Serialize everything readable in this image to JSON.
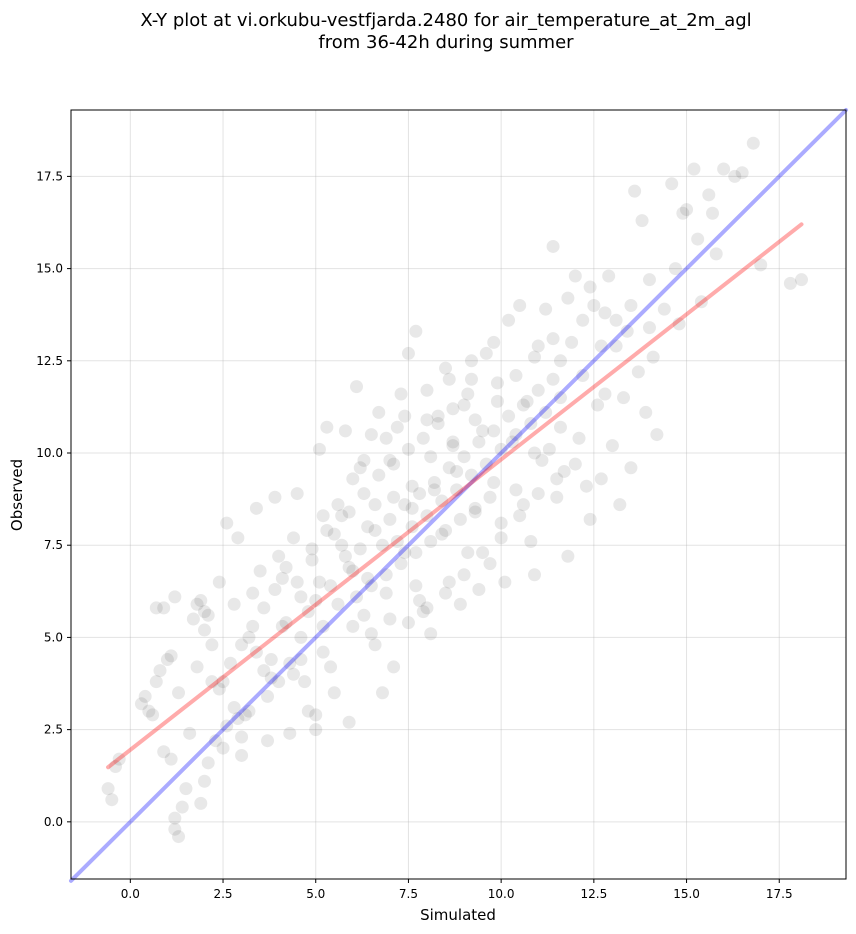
{
  "chart_data": {
    "type": "scatter",
    "title_line1": "X-Y plot at vi.orkubu-vestfjarda.2480 for air_temperature_at_2m_agl",
    "title_line2": "from 36-42h during summer",
    "xlabel": "Simulated",
    "ylabel": "Observed",
    "xlim": [
      -1.6,
      19.3
    ],
    "ylim": [
      -1.55,
      19.3
    ],
    "xticks": [
      0.0,
      2.5,
      5.0,
      7.5,
      10.0,
      12.5,
      15.0,
      17.5
    ],
    "yticks": [
      0.0,
      2.5,
      5.0,
      7.5,
      10.0,
      12.5,
      15.0,
      17.5
    ],
    "xtick_labels": [
      "0.0",
      "2.5",
      "5.0",
      "7.5",
      "10.0",
      "12.5",
      "15.0",
      "17.5"
    ],
    "ytick_labels": [
      "0.0",
      "2.5",
      "5.0",
      "7.5",
      "10.0",
      "12.5",
      "15.0",
      "17.5"
    ],
    "grid": true,
    "point_color": "#000000",
    "point_alpha": 0.09,
    "lines": [
      {
        "role": "one-to-one",
        "color": "#0000ff",
        "alpha": 0.33,
        "x": [
          -1.6,
          19.3
        ],
        "y": [
          -1.6,
          19.3
        ]
      },
      {
        "role": "regression",
        "color": "#ff0000",
        "alpha": 0.33,
        "x": [
          -0.6,
          18.1
        ],
        "y": [
          1.48,
          16.2
        ]
      }
    ],
    "points": [
      [
        -0.6,
        0.9
      ],
      [
        -0.5,
        0.6
      ],
      [
        -0.3,
        1.7
      ],
      [
        -0.4,
        1.5
      ],
      [
        0.3,
        3.2
      ],
      [
        0.4,
        3.4
      ],
      [
        0.5,
        3.0
      ],
      [
        0.6,
        2.9
      ],
      [
        0.7,
        3.8
      ],
      [
        0.8,
        4.1
      ],
      [
        0.7,
        5.8
      ],
      [
        0.9,
        5.8
      ],
      [
        1.0,
        4.4
      ],
      [
        1.1,
        4.5
      ],
      [
        1.2,
        6.1
      ],
      [
        0.9,
        1.9
      ],
      [
        1.1,
        1.7
      ],
      [
        1.2,
        0.1
      ],
      [
        1.2,
        -0.2
      ],
      [
        1.3,
        -0.4
      ],
      [
        1.4,
        0.4
      ],
      [
        1.5,
        0.9
      ],
      [
        1.3,
        3.5
      ],
      [
        1.6,
        2.4
      ],
      [
        1.7,
        5.5
      ],
      [
        1.8,
        5.9
      ],
      [
        1.9,
        6.0
      ],
      [
        2.0,
        5.2
      ],
      [
        2.1,
        5.6
      ],
      [
        2.2,
        4.8
      ],
      [
        1.9,
        0.5
      ],
      [
        2.0,
        1.1
      ],
      [
        2.1,
        1.6
      ],
      [
        2.3,
        2.2
      ],
      [
        2.4,
        3.6
      ],
      [
        2.5,
        3.8
      ],
      [
        2.4,
        6.5
      ],
      [
        2.6,
        8.1
      ],
      [
        2.8,
        5.9
      ],
      [
        2.9,
        7.7
      ],
      [
        2.5,
        2.0
      ],
      [
        2.6,
        2.6
      ],
      [
        2.8,
        3.1
      ],
      [
        3.0,
        2.3
      ],
      [
        3.0,
        1.8
      ],
      [
        3.1,
        2.9
      ],
      [
        3.2,
        5.0
      ],
      [
        3.3,
        6.2
      ],
      [
        3.4,
        8.5
      ],
      [
        3.5,
        6.8
      ],
      [
        3.6,
        4.1
      ],
      [
        3.7,
        2.2
      ],
      [
        3.8,
        3.9
      ],
      [
        3.9,
        8.8
      ],
      [
        4.0,
        7.2
      ],
      [
        4.1,
        6.6
      ],
      [
        4.2,
        5.4
      ],
      [
        4.3,
        4.3
      ],
      [
        4.3,
        2.4
      ],
      [
        4.4,
        7.7
      ],
      [
        4.5,
        8.9
      ],
      [
        4.6,
        5.0
      ],
      [
        4.7,
        3.8
      ],
      [
        4.8,
        3.0
      ],
      [
        4.9,
        7.1
      ],
      [
        5.0,
        2.5
      ],
      [
        5.0,
        2.9
      ],
      [
        5.1,
        6.5
      ],
      [
        5.1,
        10.1
      ],
      [
        5.2,
        8.3
      ],
      [
        5.3,
        10.7
      ],
      [
        5.4,
        4.2
      ],
      [
        5.5,
        3.5
      ],
      [
        5.6,
        8.6
      ],
      [
        5.7,
        7.5
      ],
      [
        5.8,
        10.6
      ],
      [
        5.9,
        6.9
      ],
      [
        5.9,
        2.7
      ],
      [
        6.0,
        9.3
      ],
      [
        6.1,
        11.8
      ],
      [
        6.2,
        9.6
      ],
      [
        6.3,
        5.6
      ],
      [
        6.4,
        8.0
      ],
      [
        6.5,
        10.5
      ],
      [
        6.6,
        4.8
      ],
      [
        6.7,
        11.1
      ],
      [
        6.8,
        3.5
      ],
      [
        6.9,
        6.2
      ],
      [
        7.0,
        9.8
      ],
      [
        7.1,
        4.2
      ],
      [
        7.2,
        10.7
      ],
      [
        7.3,
        11.6
      ],
      [
        7.4,
        7.3
      ],
      [
        7.5,
        12.7
      ],
      [
        7.6,
        8.5
      ],
      [
        7.7,
        13.3
      ],
      [
        7.8,
        6.0
      ],
      [
        7.9,
        5.7
      ],
      [
        8.0,
        10.9
      ],
      [
        8.1,
        5.1
      ],
      [
        8.2,
        9.0
      ],
      [
        8.3,
        11.0
      ],
      [
        8.4,
        7.8
      ],
      [
        8.5,
        12.3
      ],
      [
        8.6,
        6.5
      ],
      [
        8.7,
        10.2
      ],
      [
        8.8,
        9.5
      ],
      [
        8.9,
        5.9
      ],
      [
        9.0,
        11.3
      ],
      [
        9.1,
        7.3
      ],
      [
        9.2,
        12.0
      ],
      [
        9.3,
        8.4
      ],
      [
        9.4,
        6.3
      ],
      [
        9.5,
        10.6
      ],
      [
        9.6,
        12.7
      ],
      [
        9.7,
        7.0
      ],
      [
        9.8,
        9.2
      ],
      [
        9.9,
        11.9
      ],
      [
        10.0,
        8.1
      ],
      [
        10.1,
        6.5
      ],
      [
        10.2,
        13.6
      ],
      [
        10.3,
        10.3
      ],
      [
        10.4,
        9.0
      ],
      [
        10.5,
        14.0
      ],
      [
        10.6,
        8.6
      ],
      [
        10.7,
        11.4
      ],
      [
        10.8,
        7.6
      ],
      [
        10.9,
        6.7
      ],
      [
        11.0,
        12.9
      ],
      [
        11.1,
        9.8
      ],
      [
        11.2,
        13.9
      ],
      [
        11.3,
        10.1
      ],
      [
        11.4,
        15.6
      ],
      [
        11.5,
        8.8
      ],
      [
        11.6,
        12.5
      ],
      [
        11.7,
        9.5
      ],
      [
        11.8,
        7.2
      ],
      [
        11.9,
        13.0
      ],
      [
        12.0,
        14.8
      ],
      [
        12.1,
        10.4
      ],
      [
        12.2,
        12.1
      ],
      [
        12.3,
        9.1
      ],
      [
        12.4,
        8.2
      ],
      [
        12.5,
        14.0
      ],
      [
        12.6,
        11.3
      ],
      [
        12.7,
        9.3
      ],
      [
        12.8,
        13.8
      ],
      [
        12.9,
        14.8
      ],
      [
        13.0,
        10.2
      ],
      [
        13.1,
        12.9
      ],
      [
        13.2,
        8.6
      ],
      [
        13.3,
        11.5
      ],
      [
        13.4,
        13.3
      ],
      [
        13.5,
        9.6
      ],
      [
        13.6,
        17.1
      ],
      [
        13.7,
        12.2
      ],
      [
        13.8,
        16.3
      ],
      [
        13.9,
        11.1
      ],
      [
        14.0,
        14.7
      ],
      [
        14.1,
        12.6
      ],
      [
        14.2,
        10.5
      ],
      [
        14.4,
        13.9
      ],
      [
        14.6,
        17.3
      ],
      [
        14.7,
        15.0
      ],
      [
        14.8,
        13.5
      ],
      [
        15.0,
        16.6
      ],
      [
        15.2,
        17.7
      ],
      [
        15.4,
        14.1
      ],
      [
        15.6,
        17.0
      ],
      [
        15.8,
        15.4
      ],
      [
        16.0,
        17.7
      ],
      [
        16.3,
        17.5
      ],
      [
        16.8,
        18.4
      ],
      [
        17.0,
        15.1
      ],
      [
        17.8,
        14.6
      ],
      [
        18.1,
        14.7
      ],
      [
        15.3,
        15.8
      ],
      [
        14.9,
        16.5
      ],
      [
        16.5,
        17.6
      ],
      [
        15.7,
        16.5
      ],
      [
        3.4,
        4.6
      ],
      [
        3.8,
        4.4
      ],
      [
        4.1,
        5.3
      ],
      [
        4.4,
        4.0
      ],
      [
        4.6,
        6.1
      ],
      [
        4.8,
        5.7
      ],
      [
        5.0,
        6.0
      ],
      [
        5.2,
        5.3
      ],
      [
        5.4,
        6.4
      ],
      [
        5.6,
        5.9
      ],
      [
        5.8,
        7.2
      ],
      [
        6.0,
        6.8
      ],
      [
        6.2,
        7.4
      ],
      [
        6.4,
        6.6
      ],
      [
        6.6,
        7.9
      ],
      [
        6.8,
        7.5
      ],
      [
        7.0,
        8.2
      ],
      [
        7.2,
        7.6
      ],
      [
        7.4,
        8.6
      ],
      [
        7.6,
        8.0
      ],
      [
        7.8,
        8.9
      ],
      [
        8.0,
        8.3
      ],
      [
        8.2,
        9.2
      ],
      [
        8.4,
        8.7
      ],
      [
        8.6,
        9.6
      ],
      [
        8.8,
        9.0
      ],
      [
        9.0,
        9.9
      ],
      [
        9.2,
        9.4
      ],
      [
        9.4,
        10.3
      ],
      [
        9.6,
        9.7
      ],
      [
        9.8,
        10.6
      ],
      [
        10.0,
        10.1
      ],
      [
        10.2,
        11.0
      ],
      [
        10.4,
        10.5
      ],
      [
        10.6,
        11.3
      ],
      [
        10.8,
        10.8
      ],
      [
        11.0,
        11.7
      ],
      [
        11.2,
        11.1
      ],
      [
        11.4,
        12.0
      ],
      [
        11.6,
        11.5
      ],
      [
        5.5,
        7.8
      ],
      [
        5.9,
        8.4
      ],
      [
        6.3,
        8.9
      ],
      [
        6.7,
        9.4
      ],
      [
        7.1,
        9.7
      ],
      [
        7.5,
        10.1
      ],
      [
        7.9,
        10.4
      ],
      [
        8.3,
        10.8
      ],
      [
        8.7,
        11.2
      ],
      [
        9.1,
        11.6
      ],
      [
        6.1,
        6.1
      ],
      [
        6.5,
        6.4
      ],
      [
        6.9,
        6.7
      ],
      [
        7.3,
        7.0
      ],
      [
        7.7,
        7.3
      ],
      [
        8.1,
        7.6
      ],
      [
        8.5,
        7.9
      ],
      [
        8.9,
        8.2
      ],
      [
        9.3,
        8.5
      ],
      [
        9.7,
        8.8
      ],
      [
        4.9,
        7.4
      ],
      [
        5.3,
        7.9
      ],
      [
        5.7,
        8.3
      ],
      [
        6.3,
        9.8
      ],
      [
        6.9,
        10.4
      ],
      [
        7.4,
        11.0
      ],
      [
        8.0,
        11.7
      ],
      [
        8.6,
        12.0
      ],
      [
        9.2,
        12.5
      ],
      [
        9.8,
        13.0
      ],
      [
        7.5,
        5.4
      ],
      [
        8.0,
        5.8
      ],
      [
        8.5,
        6.2
      ],
      [
        9.0,
        6.7
      ],
      [
        9.5,
        7.3
      ],
      [
        10.0,
        7.7
      ],
      [
        10.5,
        8.3
      ],
      [
        11.0,
        8.9
      ],
      [
        11.5,
        9.3
      ],
      [
        12.0,
        9.7
      ],
      [
        3.0,
        4.8
      ],
      [
        3.3,
        5.3
      ],
      [
        3.6,
        5.8
      ],
      [
        3.9,
        6.3
      ],
      [
        4.2,
        6.9
      ],
      [
        4.5,
        6.5
      ],
      [
        2.7,
        4.3
      ],
      [
        2.2,
        3.8
      ],
      [
        1.8,
        4.2
      ],
      [
        2.0,
        5.7
      ],
      [
        6.6,
        8.6
      ],
      [
        7.1,
        8.8
      ],
      [
        7.6,
        9.1
      ],
      [
        8.1,
        9.9
      ],
      [
        8.7,
        10.3
      ],
      [
        9.3,
        10.9
      ],
      [
        9.9,
        11.4
      ],
      [
        10.4,
        12.1
      ],
      [
        10.9,
        12.6
      ],
      [
        11.4,
        13.1
      ],
      [
        12.2,
        13.6
      ],
      [
        12.7,
        12.9
      ],
      [
        13.1,
        13.6
      ],
      [
        11.8,
        14.2
      ],
      [
        12.4,
        14.5
      ],
      [
        13.5,
        14.0
      ],
      [
        14.0,
        13.4
      ],
      [
        12.8,
        11.6
      ],
      [
        11.6,
        10.7
      ],
      [
        10.9,
        10.0
      ],
      [
        6.0,
        5.3
      ],
      [
        6.5,
        5.1
      ],
      [
        7.0,
        5.5
      ],
      [
        5.2,
        4.6
      ],
      [
        4.6,
        4.4
      ],
      [
        4.0,
        3.8
      ],
      [
        3.7,
        3.4
      ],
      [
        3.2,
        3.0
      ],
      [
        2.9,
        2.8
      ],
      [
        7.7,
        6.4
      ]
    ]
  }
}
